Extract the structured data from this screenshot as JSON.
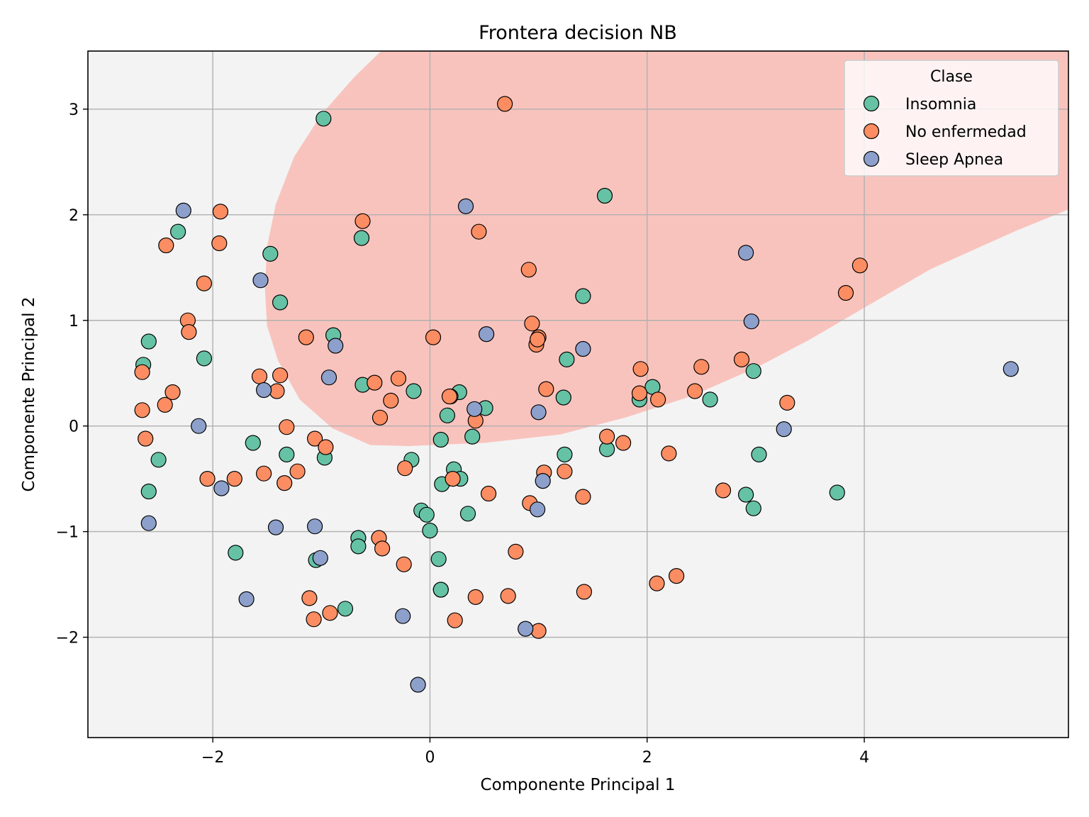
{
  "chart_data": {
    "type": "scatter",
    "title": "Frontera decision NB",
    "xlabel": "Componente Principal 1",
    "ylabel": "Componente Principal 2",
    "xlim": [
      -3.15,
      5.88
    ],
    "ylim": [
      -2.95,
      3.55
    ],
    "x_ticks": [
      -2,
      0,
      2,
      4
    ],
    "y_ticks": [
      -2,
      -1,
      0,
      1,
      2,
      3
    ],
    "grid": true,
    "legend": {
      "title": "Clase",
      "placement": "top-right",
      "entries": [
        "Insomnia",
        "No enfermedad",
        "Sleep Apnea"
      ]
    },
    "colors": {
      "background_region": "#f3f3f3",
      "decision_region": "#f9c3bd",
      "point_edge": "#000000"
    },
    "decision_region": {
      "class": "No enfermedad",
      "shape": "parabolic region opening to upper-right",
      "boundary": [
        [
          -0.55,
          -0.18
        ],
        [
          -0.9,
          -0.02
        ],
        [
          -1.2,
          0.25
        ],
        [
          -1.4,
          0.62
        ],
        [
          -1.5,
          0.95
        ],
        [
          -1.52,
          1.3
        ],
        [
          -1.5,
          1.7
        ],
        [
          -1.42,
          2.1
        ],
        [
          -1.25,
          2.55
        ],
        [
          -1.0,
          2.95
        ],
        [
          -0.7,
          3.3
        ],
        [
          -0.45,
          3.55
        ],
        [
          5.88,
          3.55
        ],
        [
          5.88,
          2.05
        ],
        [
          5.4,
          1.85
        ],
        [
          4.6,
          1.48
        ],
        [
          4.0,
          1.12
        ],
        [
          3.5,
          0.82
        ],
        [
          3.0,
          0.55
        ],
        [
          2.4,
          0.28
        ],
        [
          1.8,
          0.08
        ],
        [
          1.2,
          -0.08
        ],
        [
          0.5,
          -0.16
        ],
        [
          -0.2,
          -0.19
        ]
      ]
    },
    "series": [
      {
        "name": "Insomnia",
        "color": "#66c2a5",
        "x": [
          -0.98,
          -2.32,
          -2.64,
          -2.59,
          -2.08,
          -1.47,
          -1.38,
          -0.89,
          -0.63,
          -0.62,
          -1.63,
          -1.32,
          -0.97,
          -2.5,
          -2.59,
          -1.79,
          -1.05,
          -0.78,
          -0.66,
          -0.66,
          -0.15,
          -0.17,
          -0.08,
          -0.03,
          0.0,
          0.08,
          0.1,
          0.11,
          0.16,
          0.22,
          0.27,
          0.28,
          0.35,
          0.39,
          0.51,
          0.1,
          1.61,
          1.41,
          1.26,
          1.23,
          1.24,
          1.63,
          1.93,
          2.05,
          2.58,
          2.98,
          3.03,
          2.91,
          2.98,
          3.75,
          0.1
        ],
        "y": [
          2.91,
          1.84,
          0.58,
          0.8,
          0.64,
          1.63,
          1.17,
          0.86,
          1.78,
          0.39,
          -0.16,
          -0.27,
          -0.3,
          -0.32,
          -0.62,
          -1.2,
          -1.27,
          -1.73,
          -1.06,
          -1.14,
          0.33,
          -0.32,
          -0.8,
          -0.84,
          -0.99,
          -1.26,
          -1.55,
          -0.55,
          0.1,
          -0.41,
          0.32,
          -0.5,
          -0.83,
          -0.1,
          0.17,
          -0.13,
          2.18,
          1.23,
          0.63,
          0.27,
          -0.27,
          -0.22,
          0.25,
          0.37,
          0.25,
          0.52,
          -0.27,
          -0.65,
          -0.78,
          -0.63,
          -1.55
        ]
      },
      {
        "name": "No enfermedad",
        "color": "#fc8d62",
        "x": [
          -2.43,
          -1.93,
          -1.94,
          -2.08,
          -2.23,
          -2.22,
          -2.65,
          -2.37,
          -2.44,
          -2.65,
          -2.62,
          -1.57,
          -1.38,
          -1.41,
          -1.32,
          -1.53,
          -1.14,
          -1.06,
          -0.96,
          -1.22,
          -1.34,
          -1.8,
          -2.05,
          -0.62,
          -0.51,
          -0.29,
          -0.36,
          -0.46,
          -0.23,
          -0.47,
          -0.44,
          -0.24,
          -1.11,
          -1.07,
          -0.92,
          0.03,
          0.19,
          0.21,
          0.23,
          0.42,
          0.45,
          0.54,
          0.69,
          0.79,
          0.72,
          0.91,
          0.94,
          0.98,
          1.0,
          1.07,
          1.05,
          1.0,
          0.92,
          1.24,
          1.41,
          1.42,
          1.63,
          1.78,
          1.94,
          1.93,
          2.1,
          2.2,
          2.44,
          2.5,
          2.7,
          2.87,
          2.09,
          2.27,
          3.29,
          3.83,
          3.96,
          0.42,
          0.18,
          0.99
        ],
        "y": [
          1.71,
          2.03,
          1.73,
          1.35,
          1.0,
          0.89,
          0.51,
          0.32,
          0.2,
          0.15,
          -0.12,
          0.47,
          0.48,
          0.33,
          -0.01,
          -0.45,
          0.84,
          -0.12,
          -0.2,
          -0.43,
          -0.54,
          -0.5,
          -0.5,
          1.94,
          0.41,
          0.45,
          0.24,
          0.08,
          -0.4,
          -1.06,
          -1.16,
          -1.31,
          -1.63,
          -1.83,
          -1.77,
          0.84,
          0.28,
          -0.5,
          -1.84,
          -1.62,
          1.84,
          -0.64,
          3.05,
          -1.19,
          -1.61,
          1.48,
          0.97,
          0.77,
          0.84,
          0.35,
          -0.44,
          -1.94,
          -0.73,
          -0.43,
          -0.67,
          -1.57,
          -0.1,
          -0.16,
          0.54,
          0.31,
          0.25,
          -0.26,
          0.33,
          0.56,
          -0.61,
          0.63,
          -1.49,
          -1.42,
          0.22,
          1.26,
          1.52,
          0.05,
          0.28,
          0.82
        ]
      },
      {
        "name": "Sleep Apnea",
        "color": "#8da0cb",
        "x": [
          -2.27,
          -1.56,
          -2.13,
          -1.53,
          -0.87,
          -0.93,
          -1.92,
          -2.59,
          -1.42,
          -1.06,
          -1.01,
          -1.69,
          -0.25,
          -0.11,
          0.33,
          0.52,
          0.41,
          1.0,
          1.41,
          1.04,
          0.99,
          0.88,
          2.91,
          2.96,
          3.26,
          5.35
        ],
        "y": [
          2.04,
          1.38,
          0.0,
          0.34,
          0.76,
          0.46,
          -0.59,
          -0.92,
          -0.96,
          -0.95,
          -1.25,
          -1.64,
          -1.8,
          -2.45,
          2.08,
          0.87,
          0.16,
          0.13,
          0.73,
          -0.52,
          -0.79,
          -1.92,
          1.64,
          0.99,
          -0.03,
          0.54
        ]
      }
    ]
  }
}
